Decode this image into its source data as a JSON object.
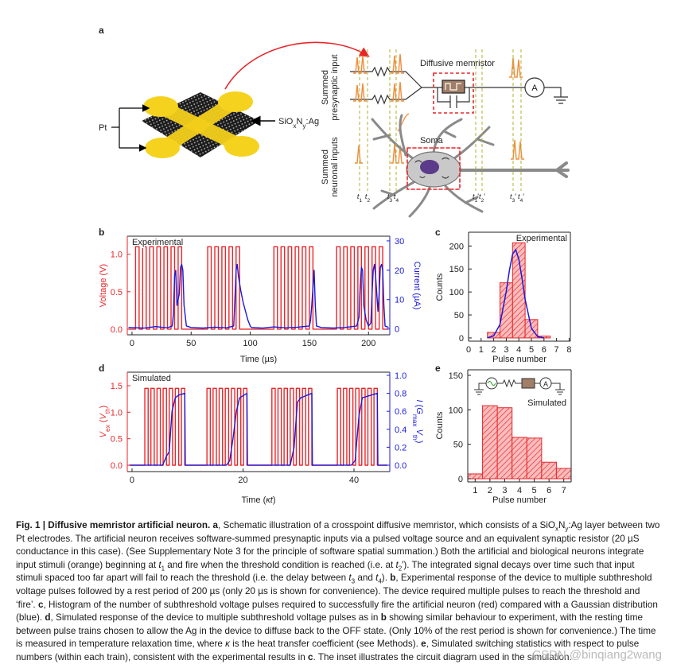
{
  "schematic": {
    "label": "a",
    "electrode": "Pt",
    "layer": [
      "SiO",
      {
        "text": "x",
        "style": "sub"
      },
      "N",
      {
        "text": "y",
        "style": "sub"
      },
      ":Ag"
    ],
    "presynaptic": [
      "Summed",
      "presynaptic input"
    ],
    "neuronal": [
      "Summed",
      "neuronal inputs"
    ],
    "memristor": "Diffusive memristor",
    "soma": "Soma",
    "ammeter": "A",
    "times": [
      [
        {
          "text": "t",
          "style": "i"
        },
        {
          "text": "1",
          "style": "sub"
        }
      ],
      [
        {
          "text": "t",
          "style": "i"
        },
        {
          "text": "2",
          "style": "sub"
        }
      ],
      [
        {
          "text": "t",
          "style": "i"
        },
        {
          "text": "3",
          "style": "sub"
        }
      ],
      [
        {
          "text": "t",
          "style": "i"
        },
        {
          "text": "4",
          "style": "sub"
        }
      ],
      [
        {
          "text": "t",
          "style": "i"
        },
        {
          "text": "1",
          "style": "sub"
        },
        "′"
      ],
      [
        {
          "text": "t",
          "style": "i"
        },
        {
          "text": "2",
          "style": "sub"
        },
        "′"
      ],
      [
        {
          "text": "t",
          "style": "i"
        },
        {
          "text": "3",
          "style": "sub"
        },
        "′"
      ],
      [
        {
          "text": "t",
          "style": "i"
        },
        {
          "text": "4",
          "style": "sub"
        },
        "′"
      ]
    ]
  },
  "chart_data": [
    {
      "type": "line",
      "label": "b",
      "legend": "Experimental",
      "legend_corner": "upper left",
      "xlabel": "Time (µs)",
      "ylabel": "Voltage (V)",
      "y2label": "Current (µA)",
      "xlim": [
        -4,
        218
      ],
      "ylim": [
        -0.075,
        1.24
      ],
      "y2lim": [
        -2,
        31.6
      ],
      "xticks": [
        0,
        50,
        100,
        150,
        200
      ],
      "yticks": [
        {
          "value": 0,
          "label": "0.0"
        },
        0.5,
        {
          "value": 1,
          "label": "1.0"
        }
      ],
      "y2ticks": [
        0,
        10,
        20,
        30
      ],
      "series": [
        {
          "color": "#e8262a",
          "x": [
            -3,
            3,
            3,
            6,
            6,
            9,
            9,
            12,
            12,
            15,
            15,
            18,
            18,
            21,
            21,
            24,
            24,
            27,
            27,
            30,
            30,
            33,
            33,
            36,
            36,
            39,
            39,
            42,
            42,
            64,
            64,
            67,
            67,
            70,
            70,
            73,
            73,
            76,
            76,
            79,
            79,
            82,
            82,
            85,
            85,
            88,
            88,
            91,
            91,
            120,
            120,
            123,
            123,
            126,
            126,
            129,
            129,
            132,
            132,
            135,
            135,
            138,
            138,
            141,
            141,
            144,
            144,
            147,
            147,
            150,
            150,
            153,
            153,
            173,
            173,
            176,
            176,
            179,
            179,
            182,
            182,
            185,
            185,
            188,
            188,
            191,
            191,
            194,
            194,
            197,
            197,
            200,
            200,
            203,
            203,
            206,
            206,
            209,
            209,
            212,
            212,
            217
          ],
          "values": [
            0,
            0,
            1.1,
            1.1,
            0,
            0,
            1.1,
            1.1,
            0,
            0,
            1.1,
            1.1,
            0,
            0,
            1.1,
            1.1,
            0,
            0,
            1.1,
            1.1,
            0,
            0,
            1.1,
            1.1,
            0,
            0,
            1.1,
            1.1,
            0,
            0,
            1.1,
            1.1,
            0,
            0,
            1.1,
            1.1,
            0,
            0,
            1.1,
            1.1,
            0,
            0,
            1.1,
            1.1,
            0,
            0,
            1.1,
            1.1,
            0,
            0,
            1.1,
            1.1,
            0,
            0,
            1.1,
            1.1,
            0,
            0,
            1.1,
            1.1,
            0,
            0,
            1.1,
            1.1,
            0,
            0,
            1.1,
            1.1,
            0,
            0,
            1.1,
            1.1,
            0,
            0,
            1.1,
            1.1,
            0,
            0,
            1.1,
            1.1,
            0,
            0,
            1.1,
            1.1,
            0,
            0,
            1.1,
            1.1,
            0,
            0,
            1.1,
            1.1,
            0,
            0,
            1.1,
            1.1,
            0,
            0,
            1.1,
            1.1,
            0,
            0
          ]
        },
        {
          "color": "#1a1adb",
          "axis": "y2",
          "x": [
            -3,
            10,
            20,
            30,
            34,
            35,
            36,
            37,
            38,
            40,
            41,
            42,
            43,
            44,
            46,
            50,
            60,
            70,
            80,
            86,
            87,
            88,
            89,
            90,
            92,
            94,
            96,
            98,
            100,
            101,
            110,
            120,
            130,
            140,
            150,
            151,
            152,
            153,
            154,
            155,
            156,
            160,
            170,
            180,
            190,
            192,
            193,
            194,
            195,
            196,
            198,
            200,
            202,
            203,
            204,
            205,
            206,
            208,
            209,
            210,
            211,
            212,
            213,
            214,
            217
          ],
          "values": [
            0.5,
            0.3,
            0.8,
            0.4,
            1,
            5,
            18,
            20,
            8,
            12,
            21,
            22,
            20,
            8,
            1,
            0.5,
            0.3,
            0.6,
            0.4,
            1,
            10,
            20,
            22,
            18,
            13,
            9,
            6,
            3,
            1,
            0.5,
            0.3,
            0.7,
            0.4,
            0.6,
            1,
            3,
            8,
            14,
            20,
            8,
            1,
            0.5,
            0.3,
            0.5,
            1,
            4,
            15,
            21,
            20,
            8,
            3,
            1,
            2,
            12,
            20,
            22,
            18,
            6,
            12,
            21,
            22,
            20,
            8,
            1,
            0.5
          ]
        }
      ]
    },
    {
      "type": "histogram",
      "label": "c",
      "legend": "Experimental",
      "legend_corner": "upper right",
      "xlabel": "Pulse number",
      "ylabel": "Counts",
      "xlim": [
        0,
        8.1
      ],
      "ylim": [
        -7,
        230
      ],
      "xticks": [
        0,
        1,
        2,
        3,
        4,
        5,
        6,
        7,
        8
      ],
      "yticks": [
        0,
        50,
        100,
        150,
        200
      ],
      "bins": [
        1.5,
        2.5,
        3.5,
        4.5,
        5.5,
        6.5
      ],
      "values": [
        12,
        120,
        207,
        40,
        4
      ],
      "color": "#e8262a",
      "fit": {
        "color": "#1a1adb",
        "x": [
          1.5,
          2,
          2.5,
          3,
          3.25,
          3.5,
          3.75,
          4,
          4.25,
          4.5,
          5,
          5.5,
          6
        ],
        "values": [
          0.35,
          4.5,
          29.5,
          101.6,
          147,
          182,
          192,
          171,
          130,
          84,
          21,
          2.8,
          0.2
        ]
      }
    },
    {
      "type": "line",
      "label": "d",
      "legend": "Simulated",
      "legend_corner": "upper left",
      "xlabel": [
        "Time (",
        {
          "text": "κt",
          "style": "i"
        },
        ")"
      ],
      "ylabel": [
        {
          "text": "V",
          "style": "i"
        },
        {
          "text": "ex",
          "style": "sub"
        },
        " (",
        {
          "text": "V",
          "style": "i"
        },
        {
          "text": "th",
          "style": "sub"
        },
        ")"
      ],
      "y2label": [
        {
          "text": "I",
          "style": "i"
        },
        " (",
        {
          "text": "G",
          "style": "i"
        },
        {
          "text": "max",
          "style": "sub"
        },
        " ",
        {
          "text": "V",
          "style": "i"
        },
        {
          "text": "th",
          "style": "sub"
        },
        ")"
      ],
      "xlim": [
        -0.86,
        46.45
      ],
      "ylim": [
        -0.12,
        1.755
      ],
      "y2lim": [
        -0.071,
        1.035
      ],
      "xticks": [
        0,
        20,
        40
      ],
      "yticks": [
        {
          "value": 0,
          "label": "0.0"
        },
        0.5,
        {
          "value": 1,
          "label": "1.0"
        },
        1.5
      ],
      "y2ticks": [
        {
          "value": 0,
          "label": "0.0"
        },
        0.2,
        0.4,
        0.6,
        0.8,
        {
          "value": 1,
          "label": "1.0"
        }
      ],
      "series": [
        {
          "color": "#e8262a",
          "x": [
            -0.5,
            2.3,
            2.3,
            2.9,
            2.9,
            3.4,
            3.4,
            4.0,
            4.0,
            4.5,
            4.5,
            5.1,
            5.1,
            5.6,
            5.6,
            6.2,
            6.2,
            6.7,
            6.7,
            7.3,
            7.3,
            7.8,
            7.8,
            8.4,
            8.4,
            8.9,
            8.9,
            9.5,
            9.5,
            13.5,
            13.5,
            14.1,
            14.1,
            14.6,
            14.6,
            15.2,
            15.2,
            15.7,
            15.7,
            16.3,
            16.3,
            16.8,
            16.8,
            17.4,
            17.4,
            17.9,
            17.9,
            18.5,
            18.5,
            19.0,
            19.0,
            19.6,
            19.6,
            20.1,
            20.1,
            20.7,
            20.7,
            25.2,
            25.2,
            25.8,
            25.8,
            26.3,
            26.3,
            26.9,
            26.9,
            27.4,
            27.4,
            28.0,
            28.0,
            28.5,
            28.5,
            29.1,
            29.1,
            29.6,
            29.6,
            30.2,
            30.2,
            30.7,
            30.7,
            31.3,
            31.3,
            31.8,
            31.8,
            32.4,
            32.4,
            37.0,
            37.0,
            37.6,
            37.6,
            38.1,
            38.1,
            38.7,
            38.7,
            39.2,
            39.2,
            39.8,
            39.8,
            40.3,
            40.3,
            40.9,
            40.9,
            41.4,
            41.4,
            42.0,
            42.0,
            42.5,
            42.5,
            43.1,
            43.1,
            43.6,
            43.6,
            44.2,
            44.2,
            46
          ],
          "values": [
            0,
            0,
            1.45,
            1.45,
            0,
            0,
            1.45,
            1.45,
            0,
            0,
            1.45,
            1.45,
            0,
            0,
            1.45,
            1.45,
            0,
            0,
            1.45,
            1.45,
            0,
            0,
            1.45,
            1.45,
            0,
            0,
            1.45,
            1.45,
            0,
            0,
            1.45,
            1.45,
            0,
            0,
            1.45,
            1.45,
            0,
            0,
            1.45,
            1.45,
            0,
            0,
            1.45,
            1.45,
            0,
            0,
            1.45,
            1.45,
            0,
            0,
            1.45,
            1.45,
            0,
            0,
            1.45,
            1.45,
            0,
            0,
            1.45,
            1.45,
            0,
            0,
            1.45,
            1.45,
            0,
            0,
            1.45,
            1.45,
            0,
            0,
            1.45,
            1.45,
            0,
            0,
            1.45,
            1.45,
            0,
            0,
            1.45,
            1.45,
            0,
            0,
            1.45,
            1.45,
            0,
            0,
            1.45,
            1.45,
            0,
            0,
            1.45,
            1.45,
            0,
            0,
            1.45,
            1.45,
            0,
            0,
            1.45,
            1.45,
            0,
            0,
            1.45,
            1.45,
            0,
            0,
            1.45,
            1.45,
            0,
            0,
            1.45,
            1.45,
            0,
            0
          ]
        },
        {
          "color": "#1a1adb",
          "axis": "y2",
          "x": [
            -0.5,
            5.5,
            6.2,
            6.7,
            7.2,
            7.8,
            8.4,
            9.5,
            9.6,
            17,
            17.6,
            18.2,
            18.8,
            19.4,
            20.7,
            20.8,
            28.5,
            29.2,
            29.8,
            30.4,
            32.4,
            32.5,
            39.5,
            40.2,
            40.9,
            41.5,
            44.2,
            44.3,
            46
          ],
          "values": [
            0,
            0,
            0.1,
            0.15,
            0.6,
            0.75,
            0.78,
            0.8,
            0,
            0,
            0.05,
            0.3,
            0.6,
            0.75,
            0.8,
            0,
            0,
            0.2,
            0.7,
            0.75,
            0.8,
            0,
            0,
            0.05,
            0.55,
            0.75,
            0.8,
            0,
            0
          ]
        }
      ]
    },
    {
      "type": "histogram",
      "label": "e",
      "legend": "Simulated",
      "legend_corner": "center right",
      "inset_ammeter": "A",
      "xlabel": "Pulse number",
      "ylabel": "Counts",
      "xlim": [
        0.5,
        7.5
      ],
      "ylim": [
        -4.6,
        158
      ],
      "xticks": [
        1,
        2,
        3,
        4,
        5,
        6,
        7
      ],
      "yticks": [
        0,
        50,
        100,
        150
      ],
      "bins": [
        0.5,
        1.5,
        2.5,
        3.5,
        4.5,
        5.5,
        6.5,
        7.5
      ],
      "values": [
        7,
        106,
        103,
        60,
        59,
        24,
        15
      ],
      "color": "#e8262a"
    }
  ],
  "caption": {
    "runs": [
      {
        "text": "Fig. 1 | Diffusive memristor artificial neuron.",
        "style": "b"
      },
      " ",
      {
        "text": "a",
        "style": "b"
      },
      ", Schematic illustration of a crosspoint diffusive memristor, which consists of a SiO",
      {
        "text": "x",
        "style": "sub"
      },
      "N",
      {
        "text": "y",
        "style": "sub"
      },
      ":Ag layer between two Pt electrodes. The artificial neuron receives software-summed presynaptic inputs via a pulsed voltage source and an equivalent synaptic resistor (20 µS conductance in this case). (See Supplementary Note 3 for the principle of software spatial summation.) Both the artificial and biological neurons integrate input stimuli (orange) beginning at ",
      {
        "text": "t",
        "style": "i"
      },
      {
        "text": "1",
        "style": "sub"
      },
      " and fire when the threshold condition is reached (i.e. at ",
      {
        "text": "t",
        "style": "i"
      },
      {
        "text": "2",
        "style": "sub"
      },
      "′). The integrated signal decays over time such that input stimuli spaced too far apart will fail to reach the threshold (i.e. the delay between ",
      {
        "text": "t",
        "style": "i"
      },
      {
        "text": "3",
        "style": "sub"
      },
      " and ",
      {
        "text": "t",
        "style": "i"
      },
      {
        "text": "4",
        "style": "sub"
      },
      "). ",
      {
        "text": "b",
        "style": "b"
      },
      ", Experimental response of the device to multiple subthreshold voltage pulses followed by a rest period of 200 µs (only 20 µs is shown for convenience). The device required multiple pulses to reach the threshold and ‘fire’. ",
      {
        "text": "c",
        "style": "b"
      },
      ", Histogram of the number of subthreshold voltage pulses required to successfully fire the artificial neuron (red) compared with a Gaussian distribution (blue). ",
      {
        "text": "d",
        "style": "b"
      },
      ", Simulated response of the device to multiple subthreshold voltage pulses as in ",
      {
        "text": "b",
        "style": "b"
      },
      " showing similar behaviour to experiment, with the resting time between pulse trains chosen to allow the Ag in the device to diffuse back to the OFF state. (Only 10% of the rest period is shown for convenience.) The time is measured in temperature relaxation time, where ",
      {
        "text": "κ",
        "style": "i"
      },
      " is the heat transfer coefficient (see Methods). ",
      {
        "text": "e",
        "style": "b"
      },
      ", Simulated switching statistics with respect to pulse numbers (within each train), consistent with the experimental results in ",
      {
        "text": "c",
        "style": "b"
      },
      ". The inset illustrates the circuit diagram used in the simulation."
    ]
  },
  "watermark": "CSDN @binqiang2wang"
}
